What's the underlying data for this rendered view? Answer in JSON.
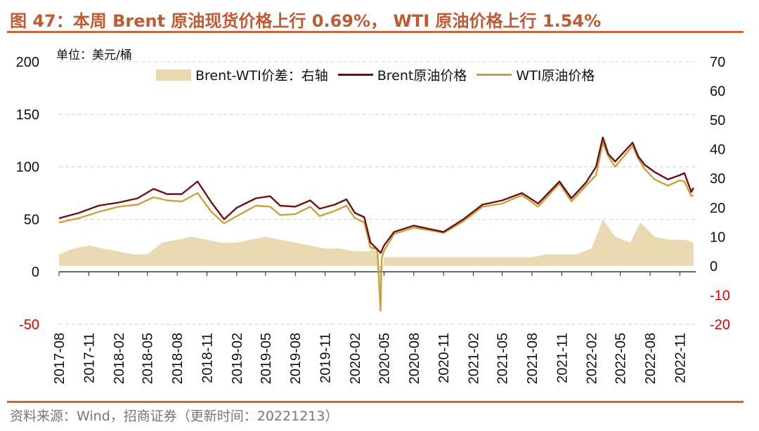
{
  "header": {
    "title": "图 47：本周 Brent 原油现货价格上行 0.69%， WTI 原油价格上行 1.54%",
    "unit": "单位：美元/桶"
  },
  "footer": {
    "source": "资料来源：Wind，招商证券（更新时间：20221213）"
  },
  "colors": {
    "title": "#c05a33",
    "rule": "#c8663c",
    "brent": "#6e1010",
    "wti": "#c9a240",
    "spread": "#e9d8b0",
    "negative_tick": "#e00000"
  },
  "chart_data": {
    "type": "line",
    "title": "",
    "xlabel": "",
    "ylabel": "单位：美元/桶",
    "ylim": [
      -50,
      200
    ],
    "y2lim": [
      -20,
      70
    ],
    "yticks": [
      -50,
      0,
      50,
      100,
      150,
      200
    ],
    "y2ticks": [
      -20,
      -10,
      0,
      10,
      20,
      30,
      40,
      50,
      60,
      70
    ],
    "grid": true,
    "legend_position": "top",
    "categories": [
      "2017-08",
      "2017-11",
      "2018-02",
      "2018-05",
      "2018-08",
      "2018-11",
      "2019-02",
      "2019-05",
      "2019-08",
      "2019-11",
      "2020-02",
      "2020-05",
      "2020-08",
      "2020-11",
      "2021-02",
      "2021-05",
      "2021-08",
      "2021-11",
      "2022-02",
      "2022-05",
      "2022-08",
      "2022-11"
    ],
    "series": [
      {
        "name": "Brent-WTI价差：右轴",
        "axis": "right",
        "type": "area",
        "x": [
          "2017-08-01",
          "2017-09-15",
          "2017-11-01",
          "2017-12-15",
          "2018-02-01",
          "2018-03-15",
          "2018-05-01",
          "2018-06-15",
          "2018-08-01",
          "2018-09-15",
          "2018-11-01",
          "2018-12-15",
          "2019-02-01",
          "2019-03-15",
          "2019-05-01",
          "2019-06-15",
          "2019-08-01",
          "2019-09-15",
          "2019-11-01",
          "2019-12-15",
          "2020-02-01",
          "2020-03-15",
          "2020-04-10",
          "2020-04-20",
          "2020-05-01",
          "2020-06-15",
          "2020-08-01",
          "2020-09-15",
          "2020-11-01",
          "2020-12-15",
          "2021-02-01",
          "2021-03-15",
          "2021-05-01",
          "2021-06-15",
          "2021-08-01",
          "2021-09-15",
          "2021-11-01",
          "2021-12-15",
          "2022-02-01",
          "2022-03-08",
          "2022-04-15",
          "2022-06-01",
          "2022-07-01",
          "2022-08-15",
          "2022-10-01",
          "2022-11-15",
          "2022-12-13"
        ],
        "values": [
          4,
          6,
          7,
          6,
          5,
          4,
          4,
          8,
          9,
          10,
          9,
          8,
          8,
          9,
          10,
          9,
          8,
          7,
          6,
          6,
          5,
          5,
          7,
          -8,
          3,
          3,
          3,
          3,
          3,
          3,
          3,
          3,
          3,
          3,
          3,
          4,
          4,
          4,
          6,
          16,
          10,
          8,
          15,
          10,
          9,
          9,
          8
        ]
      },
      {
        "name": "Brent原油价格",
        "axis": "left",
        "type": "line",
        "x": [
          "2017-08-01",
          "2017-10-01",
          "2017-12-01",
          "2018-02-01",
          "2018-04-01",
          "2018-05-20",
          "2018-07-01",
          "2018-08-15",
          "2018-10-03",
          "2018-11-15",
          "2018-12-24",
          "2019-02-01",
          "2019-04-01",
          "2019-05-15",
          "2019-06-15",
          "2019-08-01",
          "2019-09-16",
          "2019-10-15",
          "2019-12-01",
          "2020-01-06",
          "2020-02-01",
          "2020-03-01",
          "2020-03-20",
          "2020-04-21",
          "2020-05-01",
          "2020-06-01",
          "2020-08-01",
          "2020-10-01",
          "2020-11-01",
          "2021-01-01",
          "2021-03-01",
          "2021-05-01",
          "2021-07-01",
          "2021-08-20",
          "2021-10-25",
          "2021-12-01",
          "2022-01-15",
          "2022-02-15",
          "2022-03-08",
          "2022-03-25",
          "2022-04-15",
          "2022-06-08",
          "2022-06-25",
          "2022-07-15",
          "2022-08-15",
          "2022-09-25",
          "2022-10-31",
          "2022-11-15",
          "2022-12-06",
          "2022-12-13"
        ],
        "values": [
          51,
          56,
          63,
          66,
          70,
          79,
          74,
          74,
          86,
          66,
          50,
          61,
          70,
          72,
          63,
          62,
          68,
          60,
          64,
          69,
          56,
          52,
          28,
          18,
          25,
          38,
          44,
          40,
          38,
          50,
          64,
          68,
          75,
          65,
          86,
          70,
          85,
          100,
          128,
          112,
          105,
          123,
          110,
          102,
          95,
          88,
          92,
          94,
          76,
          80
        ]
      },
      {
        "name": "WTI原油价格",
        "axis": "left",
        "type": "line",
        "x": [
          "2017-08-01",
          "2017-10-01",
          "2017-12-01",
          "2018-02-01",
          "2018-04-01",
          "2018-05-20",
          "2018-07-01",
          "2018-08-15",
          "2018-10-03",
          "2018-11-15",
          "2018-12-24",
          "2019-02-01",
          "2019-04-01",
          "2019-05-15",
          "2019-06-15",
          "2019-08-01",
          "2019-09-16",
          "2019-10-15",
          "2019-12-01",
          "2020-01-06",
          "2020-02-01",
          "2020-03-01",
          "2020-03-20",
          "2020-04-10",
          "2020-04-20",
          "2020-04-24",
          "2020-05-01",
          "2020-06-01",
          "2020-08-01",
          "2020-10-01",
          "2020-11-01",
          "2021-01-01",
          "2021-03-01",
          "2021-05-01",
          "2021-07-01",
          "2021-08-20",
          "2021-10-25",
          "2021-12-01",
          "2022-01-15",
          "2022-02-15",
          "2022-03-08",
          "2022-03-25",
          "2022-04-15",
          "2022-06-08",
          "2022-06-25",
          "2022-07-15",
          "2022-08-15",
          "2022-09-25",
          "2022-10-31",
          "2022-11-15",
          "2022-12-06",
          "2022-12-13"
        ],
        "values": [
          47,
          51,
          57,
          62,
          64,
          71,
          68,
          67,
          75,
          57,
          46,
          53,
          63,
          62,
          54,
          55,
          62,
          53,
          58,
          63,
          51,
          47,
          23,
          22,
          -37,
          13,
          20,
          36,
          42,
          39,
          37,
          48,
          62,
          65,
          73,
          62,
          84,
          67,
          82,
          92,
          123,
          110,
          100,
          120,
          108,
          98,
          88,
          82,
          87,
          86,
          72,
          73
        ]
      }
    ]
  }
}
